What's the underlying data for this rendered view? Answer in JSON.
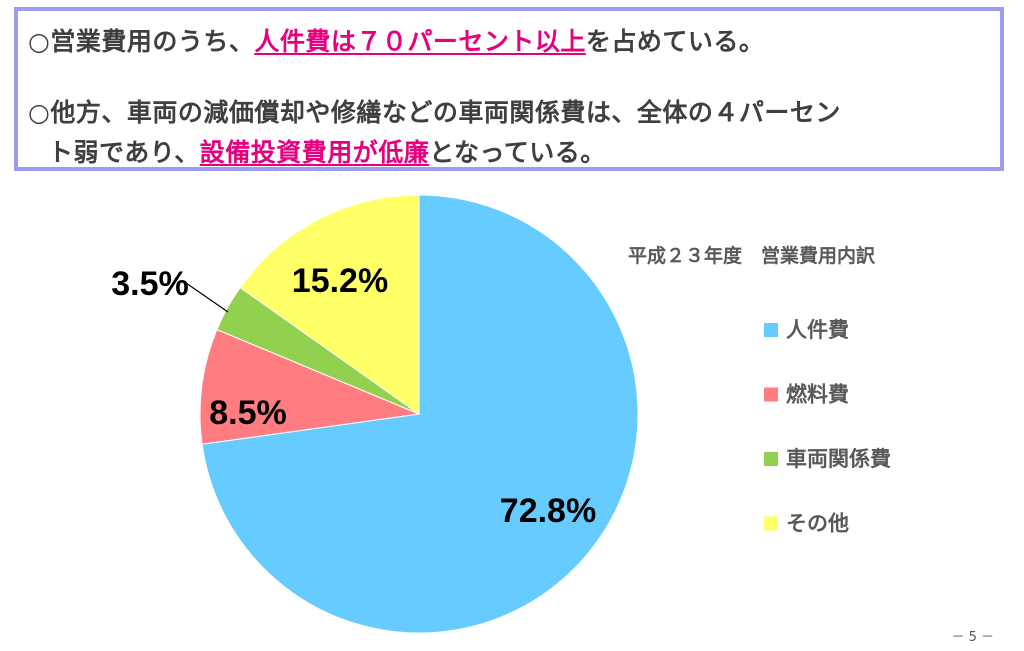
{
  "text_box": {
    "line1": {
      "a": "○営業費用のうち、",
      "hl": "人件費は７０パーセント以上",
      "b": "を占めている。"
    },
    "line2": {
      "a": "○他方、車両の減価償却や修繕などの車両関係費は、全体の４パーセン"
    },
    "line3": {
      "a": "ト弱であり、",
      "hl": "設備投資費用が低廉",
      "b": "となっている。"
    }
  },
  "chart_data": {
    "type": "pie",
    "title": "平成２３年度　営業費用内訳",
    "categories": [
      "人件費",
      "燃料費",
      "車両関係費",
      "その他"
    ],
    "values": [
      72.8,
      8.5,
      3.5,
      15.2
    ],
    "data_labels": [
      "72.8%",
      "8.5%",
      "3.5%",
      "15.2%"
    ],
    "colors": [
      "#66ccff",
      "#ff7c80",
      "#92d050",
      "#ffff66"
    ],
    "start_angle_deg": 0,
    "direction": "clockwise",
    "legend_position": "right"
  },
  "page_number": "－ 5 －"
}
